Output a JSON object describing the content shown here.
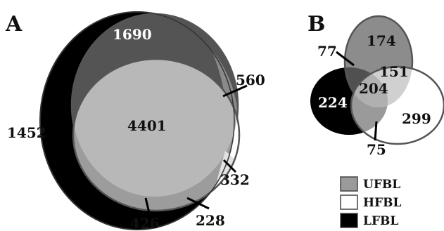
{
  "panels": [
    {
      "label": "A",
      "regions": {
        "left_only": "1452",
        "top_dark": "1690",
        "center": "4401",
        "right_ufbl": "560",
        "ufbl_hfbl": "332",
        "hfbl_only": "228",
        "bottom_sliver": "426"
      }
    },
    {
      "label": "B",
      "regions": {
        "ufbl_only": "174",
        "ufbl_lfbl": "77",
        "ufbl_hfbl": "151",
        "all_three": "204",
        "lfbl_only": "224",
        "hfbl_only": "299",
        "lfbl_hfbl": "75"
      }
    }
  ],
  "legend": [
    {
      "name": "UFBL",
      "color": "#9a9a9a"
    },
    {
      "name": "HFBL",
      "color": "#ffffff"
    },
    {
      "name": "LFBL",
      "color": "#000000"
    }
  ],
  "colors": {
    "ufbl": "#8c8c8c",
    "hfbl": "#ffffff",
    "lfbl": "#000000",
    "overlap_light": "#b8b8b8",
    "overlap_dark": "#505050",
    "outline": "#555555"
  }
}
